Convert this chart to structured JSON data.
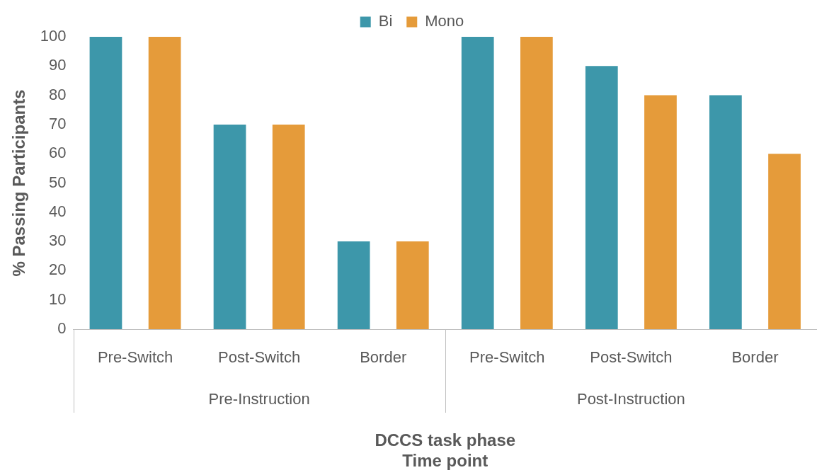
{
  "chart_data": {
    "type": "bar",
    "xlabel": "DCCS task phase\nTime point",
    "ylabel": "% Passing Participants",
    "categories": [
      "Pre-Switch",
      "Post-Switch",
      "Border",
      "Pre-Switch",
      "Post-Switch",
      "Border"
    ],
    "series": [
      {
        "name": "Bi",
        "color": "#3d97aa",
        "values": [
          100,
          70,
          30,
          100,
          90,
          80
        ]
      },
      {
        "name": "Mono",
        "color": "#e59b3a",
        "values": [
          100,
          70,
          30,
          100,
          80,
          60
        ]
      }
    ],
    "annotations": [
      "Pre-Instruction",
      "Post-Instruction"
    ],
    "ylim": [
      0,
      100
    ],
    "yticks": [
      0,
      10,
      20,
      30,
      40,
      50,
      60,
      70,
      80,
      90,
      100
    ],
    "grid": false,
    "legend": "top"
  }
}
